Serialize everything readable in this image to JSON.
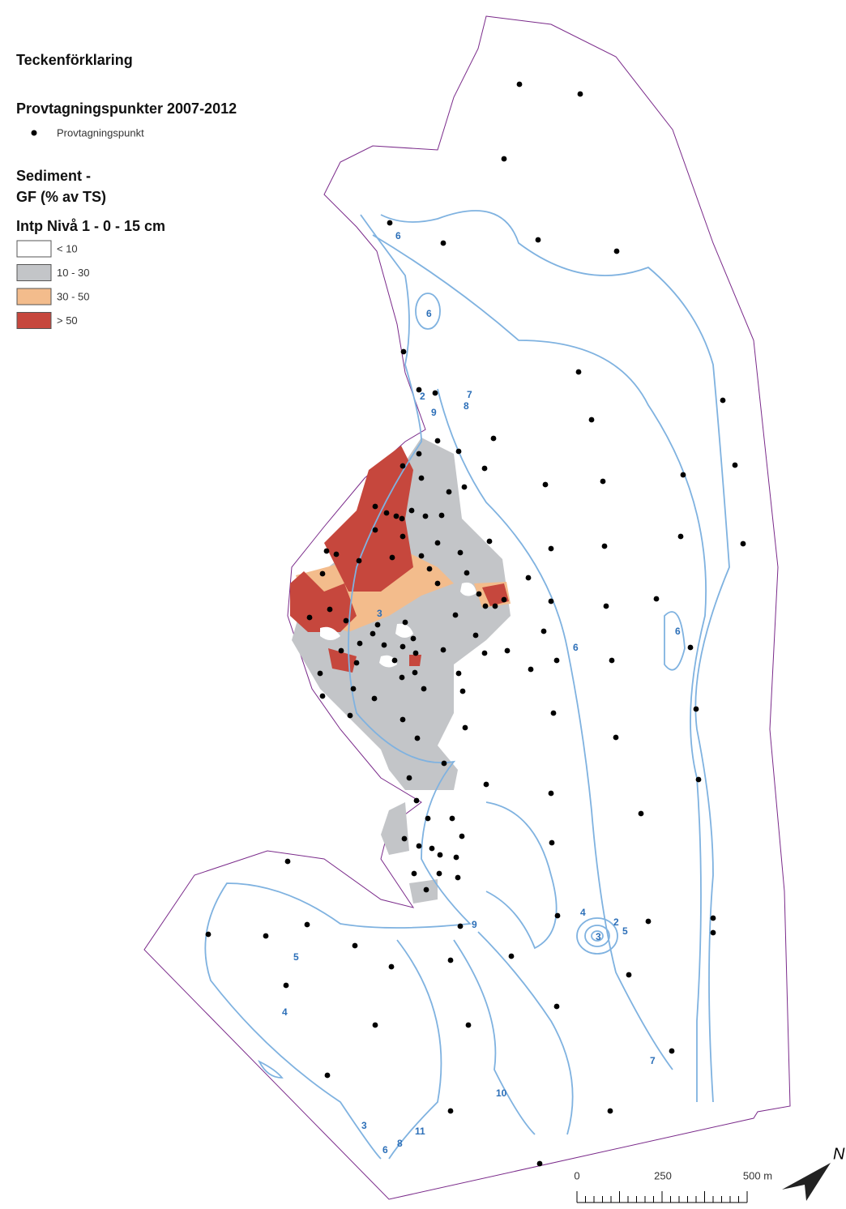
{
  "legend": {
    "title": "Teckenförklaring",
    "points_title": "Provtagningspunkter  2007-2012",
    "point_label": "Provtagningspunkt",
    "sediment_title": "Sediment -",
    "sediment_subtitle": "GF (% av TS)",
    "level_title": "Intp Nivå 1 - 0 - 15 cm",
    "items": [
      {
        "label": "< 10",
        "color": "#ffffff"
      },
      {
        "label": "10 - 30",
        "color": "#c3c5c8"
      },
      {
        "label": "30 - 50",
        "color": "#f3bc8c"
      },
      {
        "label": "> 50",
        "color": "#c6473d"
      }
    ]
  },
  "contours": {
    "labels": [
      "6",
      "6",
      "2",
      "9",
      "7",
      "8",
      "3",
      "6",
      "6",
      "4",
      "3",
      "2",
      "5",
      "5",
      "4",
      "7",
      "10",
      "3",
      "6",
      "8",
      "11",
      "9"
    ]
  },
  "scale": {
    "labels": [
      "0",
      "250",
      "500 m"
    ]
  },
  "north": "N"
}
